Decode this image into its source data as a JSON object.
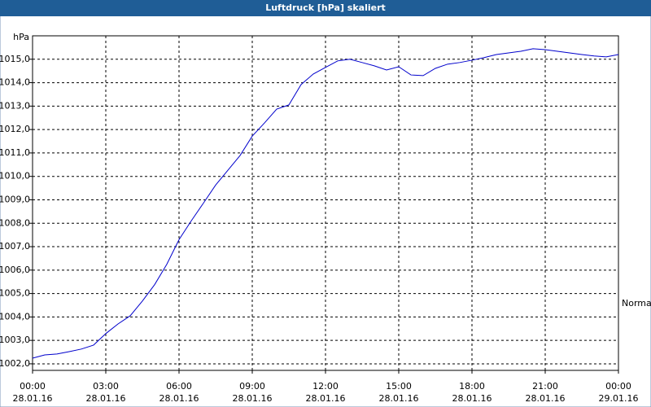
{
  "chart_data": {
    "type": "line",
    "title": "Luftdruck [hPa] skaliert",
    "y_unit": "hPa",
    "x": [
      0,
      0.5,
      1,
      1.5,
      2,
      2.5,
      3,
      3.5,
      4,
      4.5,
      5,
      5.5,
      6,
      6.5,
      7,
      7.5,
      8,
      8.5,
      9,
      9.5,
      10,
      10.5,
      11,
      11.5,
      12,
      12.5,
      13,
      13.5,
      14,
      14.5,
      15,
      15.5,
      16,
      16.5,
      17,
      17.5,
      18,
      18.5,
      19,
      19.5,
      20,
      20.5,
      21,
      21.5,
      22,
      22.5,
      23,
      23.5,
      24
    ],
    "series": [
      {
        "name": "Normal",
        "color": "#0000cc",
        "values": [
          1002.24,
          1002.38,
          1002.42,
          1002.52,
          1002.63,
          1002.8,
          1003.29,
          1003.7,
          1004.05,
          1004.68,
          1005.38,
          1006.25,
          1007.3,
          1008.1,
          1008.86,
          1009.63,
          1010.26,
          1010.89,
          1011.72,
          1012.28,
          1012.87,
          1013.05,
          1013.92,
          1014.37,
          1014.65,
          1014.93,
          1015.0,
          1014.86,
          1014.72,
          1014.54,
          1014.68,
          1014.33,
          1014.3,
          1014.61,
          1014.79,
          1014.86,
          1014.96,
          1015.07,
          1015.2,
          1015.27,
          1015.34,
          1015.45,
          1015.41,
          1015.34,
          1015.27,
          1015.2,
          1015.14,
          1015.1,
          1015.2
        ]
      }
    ],
    "xlim": [
      0,
      24
    ],
    "xticks": [
      {
        "value": 0,
        "label": "00:00"
      },
      {
        "value": 3,
        "label": "03:00"
      },
      {
        "value": 6,
        "label": "06:00"
      },
      {
        "value": 9,
        "label": "09:00"
      },
      {
        "value": 12,
        "label": "12:00"
      },
      {
        "value": 15,
        "label": "15:00"
      },
      {
        "value": 18,
        "label": "18:00"
      },
      {
        "value": 21,
        "label": "21:00"
      },
      {
        "value": 24,
        "label": "00:00"
      }
    ],
    "xtick_dates": [
      "28.01.16",
      "28.01.16",
      "28.01.16",
      "28.01.16",
      "28.01.16",
      "28.01.16",
      "28.01.16",
      "28.01.16",
      "29.01.16"
    ],
    "ylim": [
      1001.72,
      1016.0
    ],
    "yticks": [
      {
        "value": 1002,
        "label": "1002,0"
      },
      {
        "value": 1003,
        "label": "1003,0"
      },
      {
        "value": 1004,
        "label": "1004,0"
      },
      {
        "value": 1005,
        "label": "1005,0"
      },
      {
        "value": 1006,
        "label": "1006,0"
      },
      {
        "value": 1007,
        "label": "1007,0"
      },
      {
        "value": 1008,
        "label": "1008,0"
      },
      {
        "value": 1009,
        "label": "1009,0"
      },
      {
        "value": 1010,
        "label": "1010,0"
      },
      {
        "value": 1011,
        "label": "1011,0"
      },
      {
        "value": 1012,
        "label": "1012,0"
      },
      {
        "value": 1013,
        "label": "1013,0"
      },
      {
        "value": 1014,
        "label": "1014,0"
      },
      {
        "value": 1015,
        "label": "1015,0"
      }
    ],
    "grid": true
  }
}
